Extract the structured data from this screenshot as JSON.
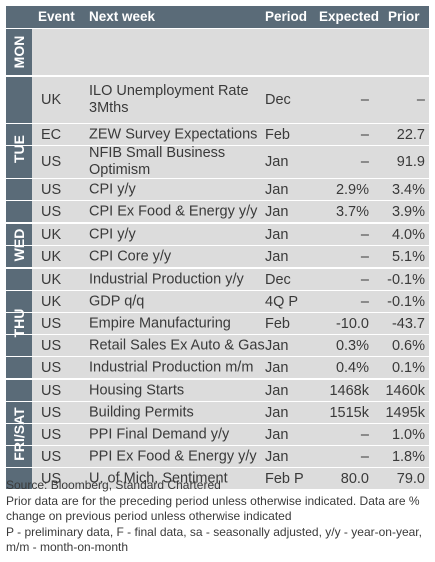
{
  "header": {
    "event": "Event",
    "next_week": "Next week",
    "period": "Period",
    "expected": "Expected",
    "prior": "Prior"
  },
  "days": [
    {
      "label": "MON",
      "rows": []
    },
    {
      "label": "TUE",
      "rows": [
        {
          "country": "UK",
          "event": "ILO Unemployment Rate\n3Mths",
          "period": "Dec",
          "expected": "–",
          "prior": "–"
        },
        {
          "country": "EC",
          "event": "ZEW Survey Expectations",
          "period": "Feb",
          "expected": "–",
          "prior": "22.7"
        },
        {
          "country": "US",
          "event": "NFIB Small Business\nOptimism",
          "period": "Jan",
          "expected": "–",
          "prior": "91.9"
        },
        {
          "country": "US",
          "event": "CPI y/y",
          "period": "Jan",
          "expected": "2.9%",
          "prior": "3.4%"
        },
        {
          "country": "US",
          "event": "CPI Ex Food & Energy y/y",
          "period": "Jan",
          "expected": "3.7%",
          "prior": "3.9%"
        }
      ]
    },
    {
      "label": "WED",
      "rows": [
        {
          "country": "UK",
          "event": "CPI y/y",
          "period": "Jan",
          "expected": "–",
          "prior": "4.0%"
        },
        {
          "country": "UK",
          "event": "CPI Core y/y",
          "period": "Jan",
          "expected": "–",
          "prior": "5.1%"
        }
      ]
    },
    {
      "label": "THU",
      "rows": [
        {
          "country": "UK",
          "event": "Industrial Production y/y",
          "period": "Dec",
          "expected": "–",
          "prior": "-0.1%"
        },
        {
          "country": "UK",
          "event": "GDP q/q",
          "period": "4Q P",
          "expected": "–",
          "prior": "-0.1%"
        },
        {
          "country": "US",
          "event": "Empire Manufacturing",
          "period": "Feb",
          "expected": "-10.0",
          "prior": "-43.7"
        },
        {
          "country": "US",
          "event": "Retail Sales Ex Auto & Gas",
          "period": "Jan",
          "expected": "0.3%",
          "prior": "0.6%"
        },
        {
          "country": "US",
          "event": "Industrial Production m/m",
          "period": "Jan",
          "expected": "0.4%",
          "prior": "0.1%"
        }
      ]
    },
    {
      "label": "FRI/SAT",
      "rows": [
        {
          "country": "US",
          "event": "Housing Starts",
          "period": "Jan",
          "expected": "1468k",
          "prior": "1460k"
        },
        {
          "country": "US",
          "event": "Building Permits",
          "period": "Jan",
          "expected": "1515k",
          "prior": "1495k"
        },
        {
          "country": "US",
          "event": "PPI Final Demand y/y",
          "period": "Jan",
          "expected": "–",
          "prior": "1.0%"
        },
        {
          "country": "US",
          "event": "PPI Ex Food & Energy y/y",
          "period": "Jan",
          "expected": "–",
          "prior": "1.8%"
        },
        {
          "country": "US",
          "event": "U. of Mich. Sentiment",
          "period": "Feb P",
          "expected": "80.0",
          "prior": "79.0"
        }
      ]
    }
  ],
  "notes": {
    "source": "Source: Bloomberg, Standard Chartered",
    "prior_note": "Prior data are for the preceding period unless otherwise indicated. Data are % change on previous period unless otherwise indicated",
    "abbrev": "P - preliminary data, F - final data, sa - seasonally adjusted, y/y - year-on-year, m/m - month-on-month"
  }
}
